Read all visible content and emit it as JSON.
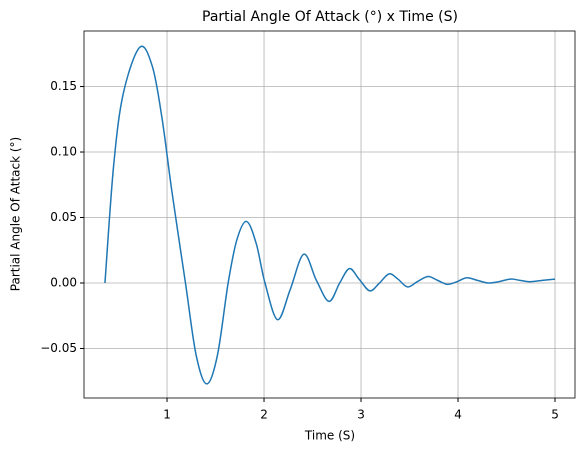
{
  "chart_data": {
    "type": "line",
    "title": "Partial Angle Of Attack (°) x Time (S)",
    "x_label": "Time (S)",
    "y_label": "Partial Angle Of Attack (°)",
    "x": [
      0.36,
      0.45,
      0.55,
      0.72,
      0.85,
      0.95,
      1.05,
      1.19,
      1.3,
      1.41,
      1.52,
      1.63,
      1.72,
      1.82,
      1.92,
      2.01,
      2.14,
      2.27,
      2.41,
      2.54,
      2.67,
      2.78,
      2.88,
      2.98,
      3.09,
      3.19,
      3.29,
      3.38,
      3.48,
      3.58,
      3.69,
      3.79,
      3.89,
      3.99,
      4.09,
      4.2,
      4.31,
      4.42,
      4.54,
      4.64,
      4.74,
      4.87,
      5.0
    ],
    "series": [
      {
        "color": "#1f77b4",
        "values": [
          0,
          0.09,
          0.145,
          0.18,
          0.165,
          0.125,
          0.07,
          0,
          -0.055,
          -0.077,
          -0.055,
          0,
          0.033,
          0.047,
          0.03,
          0,
          -0.028,
          -0.005,
          0.022,
          0.002,
          -0.014,
          0,
          0.011,
          0.003,
          -0.006,
          0,
          0.007,
          0.003,
          -0.003,
          0.001,
          0.005,
          0.002,
          -0.001,
          0.001,
          0.004,
          0.002,
          0,
          0.001,
          0.003,
          0.002,
          0.001,
          0.002,
          0.003
        ]
      }
    ],
    "xlim": [
      0.144,
      5.206
    ],
    "ylim": [
      -0.0878,
      0.1924
    ],
    "xticks": [
      1,
      2,
      3,
      4,
      5
    ],
    "yticks": [
      {
        "value": -0.05,
        "label": "−0.05"
      },
      {
        "value": 0,
        "label": "0.00"
      },
      {
        "value": 0.05,
        "label": "0.05"
      },
      {
        "value": 0.1,
        "label": "0.10"
      },
      {
        "value": 0.15,
        "label": "0.15"
      }
    ],
    "grid": true
  }
}
